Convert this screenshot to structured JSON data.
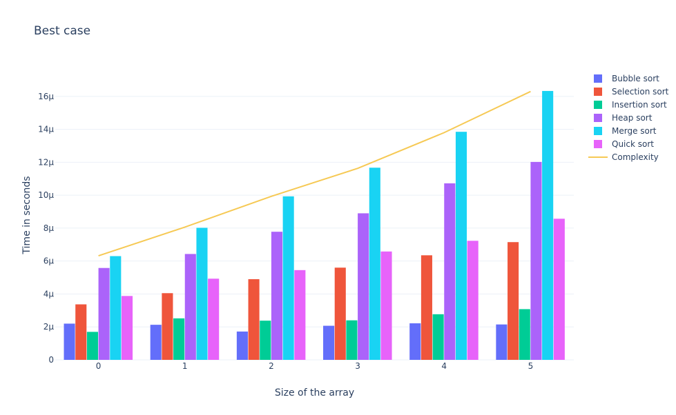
{
  "chart_data": {
    "type": "bar",
    "title": "Best case",
    "xlabel": "Size of the array",
    "ylabel": "Time in seconds",
    "categories": [
      "0",
      "1",
      "2",
      "3",
      "4",
      "5"
    ],
    "ylim": [
      0,
      17.5
    ],
    "y_ticks": [
      0,
      2,
      4,
      6,
      8,
      10,
      12,
      14,
      16
    ],
    "y_tick_labels": [
      "0",
      "2μ",
      "4μ",
      "6μ",
      "8μ",
      "10μ",
      "12μ",
      "14μ",
      "16μ"
    ],
    "grid": true,
    "legend_position": "top-right",
    "series": [
      {
        "name": "Bubble sort",
        "kind": "bar",
        "color": "#636efa",
        "values": [
          2.2,
          2.13,
          1.72,
          2.07,
          2.22,
          2.15
        ]
      },
      {
        "name": "Selection sort",
        "kind": "bar",
        "color": "#ef553b",
        "values": [
          3.37,
          4.05,
          4.9,
          5.6,
          6.35,
          7.15
        ]
      },
      {
        "name": "Insertion sort",
        "kind": "bar",
        "color": "#00cc96",
        "values": [
          1.7,
          2.52,
          2.38,
          2.4,
          2.77,
          3.08
        ]
      },
      {
        "name": "Heap sort",
        "kind": "bar",
        "color": "#ab63fa",
        "values": [
          5.58,
          6.43,
          7.78,
          8.9,
          10.72,
          12.02
        ]
      },
      {
        "name": "Merge sort",
        "kind": "bar",
        "color": "#19d3f3",
        "values": [
          6.3,
          8.02,
          9.93,
          11.67,
          13.85,
          16.33
        ]
      },
      {
        "name": "Quick sort",
        "kind": "bar",
        "color": "#e763fa",
        "values": [
          3.88,
          4.93,
          5.45,
          6.58,
          7.23,
          8.57
        ]
      },
      {
        "name": "Complexity",
        "kind": "line",
        "color": "#f6c954",
        "values": [
          6.32,
          8.06,
          9.93,
          11.63,
          13.8,
          16.3
        ]
      }
    ]
  }
}
